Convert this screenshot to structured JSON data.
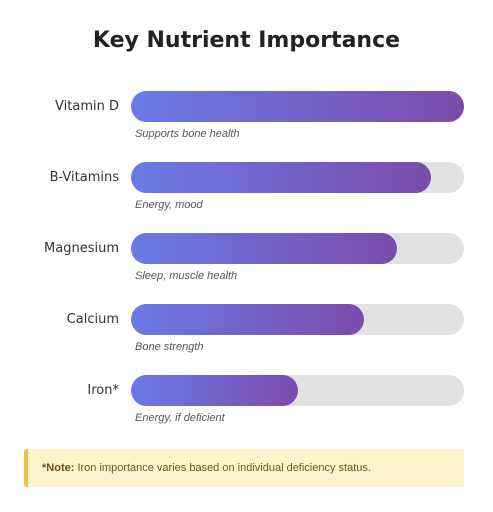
{
  "chart_data": {
    "type": "bar",
    "orientation": "horizontal",
    "title": "Key Nutrient Importance",
    "categories": [
      "Vitamin D",
      "B-Vitamins",
      "Magnesium",
      "Calcium",
      "Iron*"
    ],
    "values": [
      100,
      90,
      80,
      70,
      50
    ],
    "value_max": 100,
    "descriptions": [
      "Supports bone health",
      "Energy, mood",
      "Sleep, muscle health",
      "Bone strength",
      "Energy, if deficient"
    ],
    "colors": {
      "bar_start": "#6a7be6",
      "bar_end": "#7b4bab",
      "track": "#e2e2e2"
    }
  },
  "footnote": {
    "label": "*Note:",
    "text": "Iron importance varies based on individual deficiency status.",
    "background": "#fff3cd",
    "accent": "#f2c04a"
  }
}
